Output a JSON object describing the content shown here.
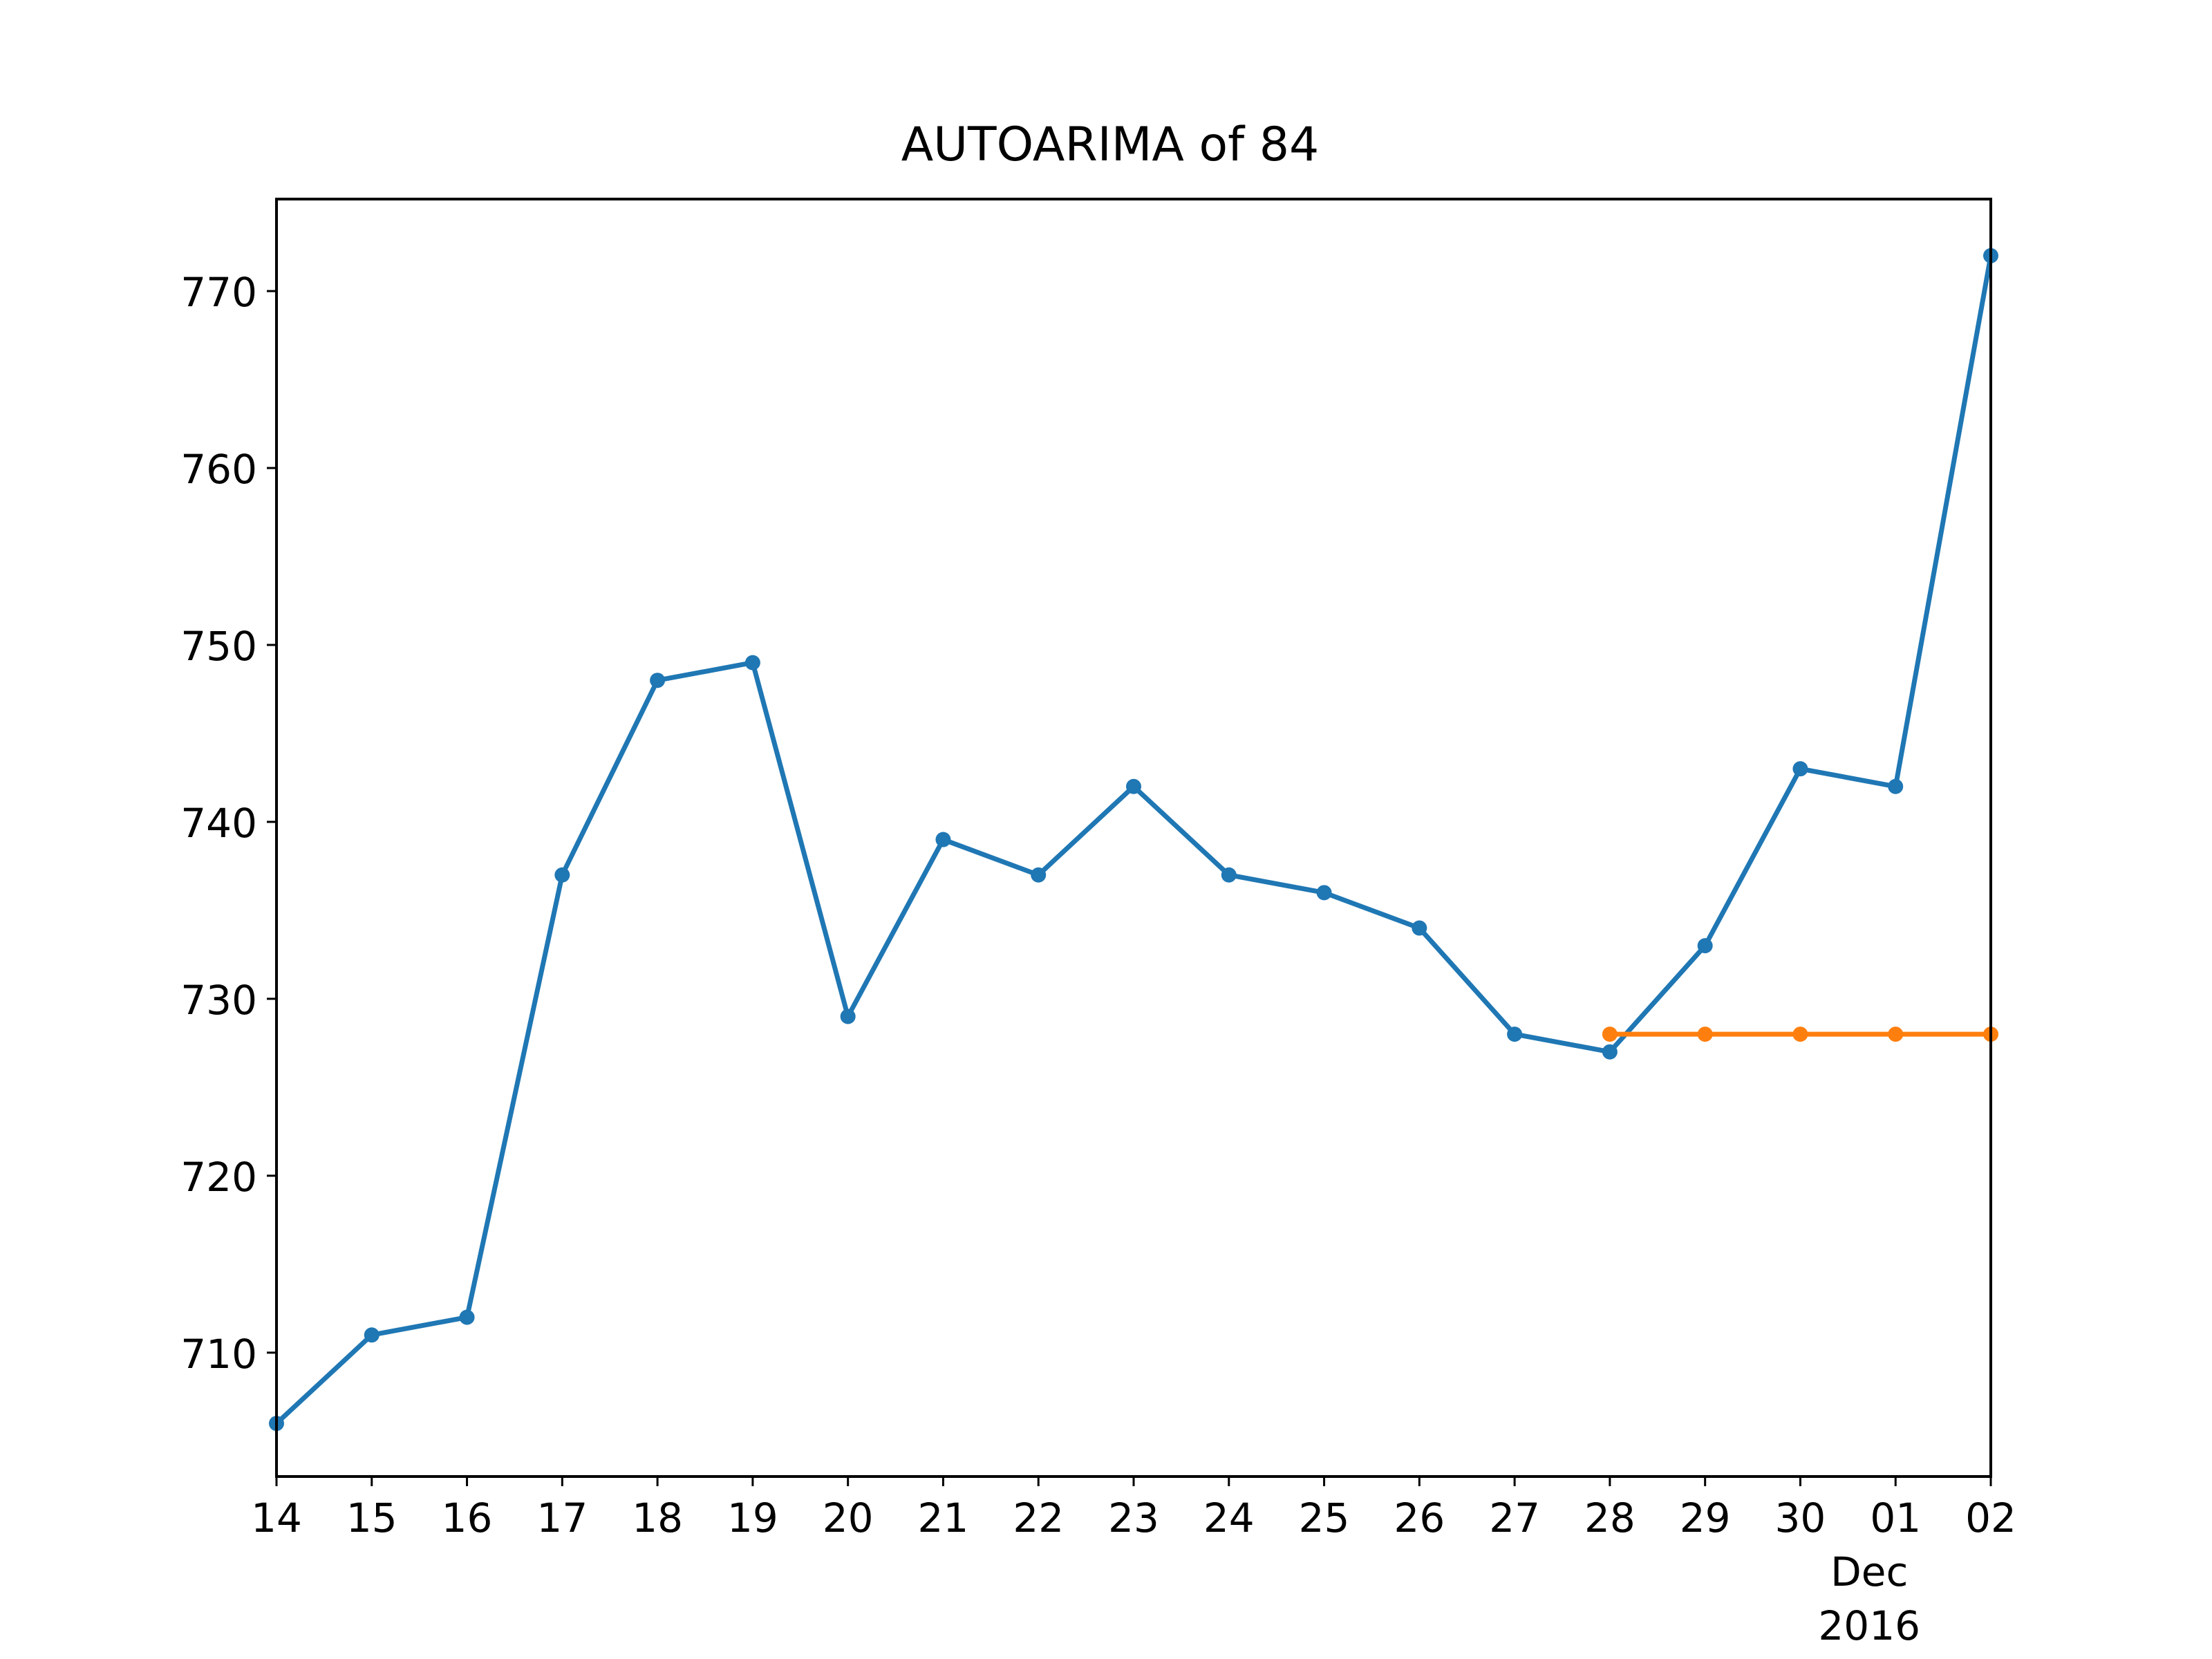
{
  "chart_data": {
    "type": "line",
    "title": "AUTOARIMA of 84",
    "xlabel": "",
    "ylabel": "",
    "x": [
      "2016-11-14",
      "2016-11-15",
      "2016-11-16",
      "2016-11-17",
      "2016-11-18",
      "2016-11-19",
      "2016-11-20",
      "2016-11-21",
      "2016-11-22",
      "2016-11-23",
      "2016-11-24",
      "2016-11-25",
      "2016-11-26",
      "2016-11-27",
      "2016-11-28",
      "2016-11-29",
      "2016-11-30",
      "2016-12-01",
      "2016-12-02"
    ],
    "x_tick_labels": [
      "14",
      "15",
      "16",
      "17",
      "18",
      "19",
      "20",
      "21",
      "22",
      "23",
      "24",
      "25",
      "26",
      "27",
      "28",
      "29",
      "30",
      "01",
      "02"
    ],
    "x_tick_sublabels": {
      "17": [
        "Dec",
        "2016"
      ]
    },
    "xlim": [
      "2016-11-14",
      "2016-12-02"
    ],
    "ylim": [
      703,
      775.2
    ],
    "y_ticks": [
      710,
      720,
      730,
      740,
      750,
      760,
      770
    ],
    "grid": false,
    "series": [
      {
        "color": "#1f77b4",
        "x": [
          "2016-11-14",
          "2016-11-15",
          "2016-11-16",
          "2016-11-17",
          "2016-11-18",
          "2016-11-19",
          "2016-11-20",
          "2016-11-21",
          "2016-11-22",
          "2016-11-23",
          "2016-11-24",
          "2016-11-25",
          "2016-11-26",
          "2016-11-27",
          "2016-11-28",
          "2016-11-29",
          "2016-11-30",
          "2016-12-01",
          "2016-12-02"
        ],
        "values": [
          706,
          711,
          712,
          737,
          748,
          749,
          729,
          739,
          737,
          742,
          737,
          736,
          734,
          728,
          727,
          733,
          743,
          742,
          772
        ]
      },
      {
        "color": "#ff7f0e",
        "x": [
          "2016-11-28",
          "2016-11-29",
          "2016-11-30",
          "2016-12-01",
          "2016-12-02"
        ],
        "values": [
          728,
          728,
          728,
          728,
          728
        ]
      }
    ]
  }
}
